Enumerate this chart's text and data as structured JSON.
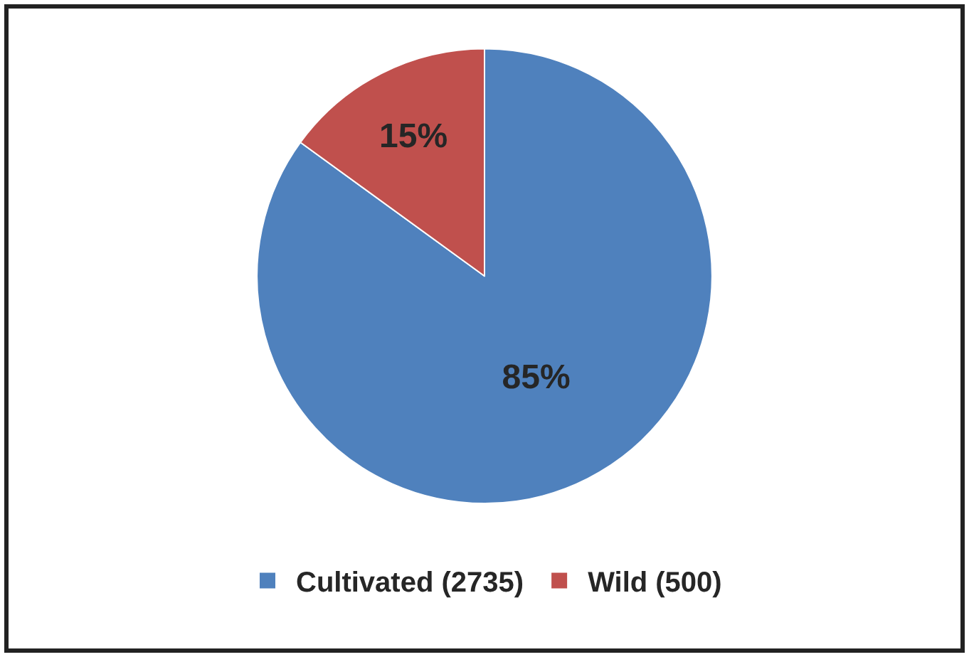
{
  "chart_data": {
    "type": "pie",
    "categories": [
      "Cultivated (2735)",
      "Wild (500)"
    ],
    "values": [
      85,
      15
    ],
    "colors": [
      "#4f81bd",
      "#c0504d"
    ],
    "value_labels": [
      "85%",
      "15%"
    ],
    "legend": "bottom"
  }
}
